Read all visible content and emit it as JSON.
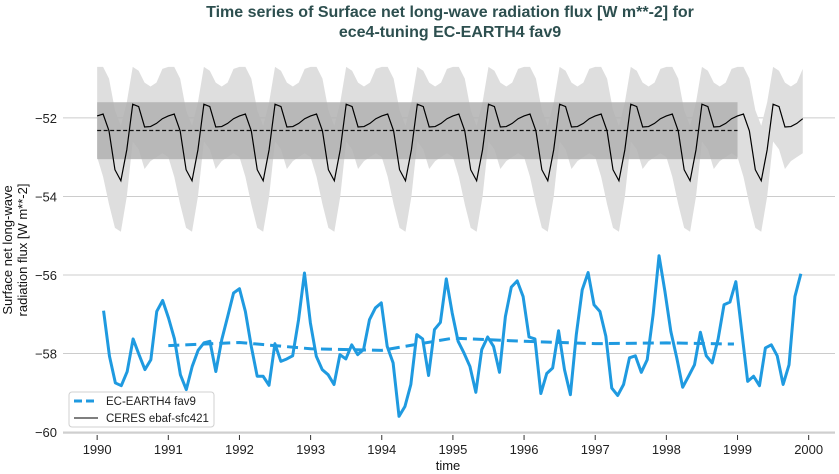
{
  "chart_data": {
    "type": "line",
    "title": [
      "Time series of Surface net long-wave radiation flux [W m**-2] for",
      "ece4-tuning EC-EARTH4 fav9"
    ],
    "xlabel": "time",
    "ylabel": [
      "Surface net long-wave",
      "radiation flux [W m**-2]"
    ],
    "xlim": [
      1989.52,
      2000.37
    ],
    "ylim": [
      -60.0,
      -50.27
    ],
    "xticks": [
      1990,
      1991,
      1992,
      1993,
      1994,
      1995,
      1996,
      1997,
      1998,
      1999,
      2000
    ],
    "yticks": [
      -52,
      -54,
      -56,
      -58,
      -60
    ],
    "ytick_labels": [
      "−52",
      "−54",
      "−56",
      "−58",
      "−60"
    ],
    "grid": "horizontal",
    "legend_position": "lower-left",
    "colors": {
      "model": "#1f9ae0",
      "ceres": "#000000",
      "band_minmax": "#dedede",
      "band_std": "#b2b2b2",
      "title": "#2d4f4f",
      "grid": "#cccccc"
    },
    "legend": [
      {
        "label": "EC-EARTH4 fav9",
        "style": "dashed",
        "color": "#1f9ae0"
      },
      {
        "label": "CERES ebaf-sfc421",
        "style": "solid",
        "color": "#000000"
      }
    ],
    "model_monthly": {
      "x_first": 1990.09,
      "x_last": 1999.89,
      "values": [
        -56.91,
        -58.07,
        -58.75,
        -58.82,
        -58.46,
        -57.63,
        -58.03,
        -58.41,
        -58.16,
        -56.93,
        -56.65,
        -57.1,
        -57.63,
        -58.54,
        -58.92,
        -58.33,
        -57.92,
        -57.73,
        -57.69,
        -58.46,
        -57.65,
        -57.06,
        -56.46,
        -56.35,
        -56.93,
        -57.82,
        -58.58,
        -58.58,
        -58.81,
        -57.75,
        -58.2,
        -58.14,
        -58.06,
        -57.14,
        -55.95,
        -57.22,
        -58.07,
        -58.41,
        -58.54,
        -58.79,
        -58.03,
        -58.14,
        -57.78,
        -58.03,
        -57.9,
        -57.14,
        -56.84,
        -56.71,
        -57.82,
        -58.24,
        -59.6,
        -59.35,
        -58.79,
        -57.52,
        -57.63,
        -58.56,
        -57.39,
        -57.21,
        -56.1,
        -56.97,
        -57.69,
        -57.99,
        -58.33,
        -58.99,
        -57.9,
        -57.58,
        -57.82,
        -58.48,
        -57.06,
        -56.31,
        -56.15,
        -56.55,
        -57.58,
        -57.63,
        -59.02,
        -58.51,
        -58.37,
        -57.42,
        -58.41,
        -59.05,
        -57.52,
        -56.38,
        -55.94,
        -56.76,
        -56.93,
        -57.56,
        -58.88,
        -59.07,
        -58.79,
        -58.11,
        -58.06,
        -58.48,
        -58.16,
        -57.01,
        -55.51,
        -56.42,
        -57.44,
        -58.11,
        -58.86,
        -58.58,
        -58.29,
        -57.46,
        -58.06,
        -58.24,
        -57.63,
        -56.76,
        -56.69,
        -56.17,
        -57.44,
        -58.71,
        -58.58,
        -58.82,
        -57.86,
        -57.78,
        -58.06,
        -58.79,
        -58.29,
        -56.55,
        -55.97
      ]
    },
    "model_annual": {
      "x": [
        1991.0,
        1992.0,
        1993.0,
        1994.0,
        1995.0,
        1996.0,
        1997.0,
        1998.0,
        1998.95
      ],
      "values": [
        -57.8,
        -57.72,
        -57.88,
        -57.92,
        -57.61,
        -57.69,
        -57.75,
        -57.73,
        -57.76
      ]
    },
    "ceres": {
      "years": [
        1990,
        1991,
        1992,
        1993,
        1994,
        1995,
        1996,
        1997,
        1998,
        1999
      ],
      "monthly_climatology": [
        -51.95,
        -51.9,
        -52.33,
        -53.32,
        -53.6,
        -52.81,
        -51.65,
        -51.71,
        -52.23,
        -52.22,
        -52.14,
        -52.02
      ],
      "monthly_max": [
        -50.7,
        -50.7,
        -51.0,
        -51.8,
        -52.2,
        -51.6,
        -50.7,
        -50.8,
        -51.1,
        -51.2,
        -51.1,
        -50.75
      ],
      "monthly_min": [
        -53.0,
        -53.5,
        -54.2,
        -54.8,
        -54.9,
        -54.0,
        -52.6,
        -52.8,
        -53.3,
        -53.1,
        -53.0,
        -52.9
      ],
      "mean": -52.32,
      "std_band": [
        -53.05,
        -51.6
      ],
      "mean_span": [
        1990.0,
        1999.0
      ]
    }
  }
}
